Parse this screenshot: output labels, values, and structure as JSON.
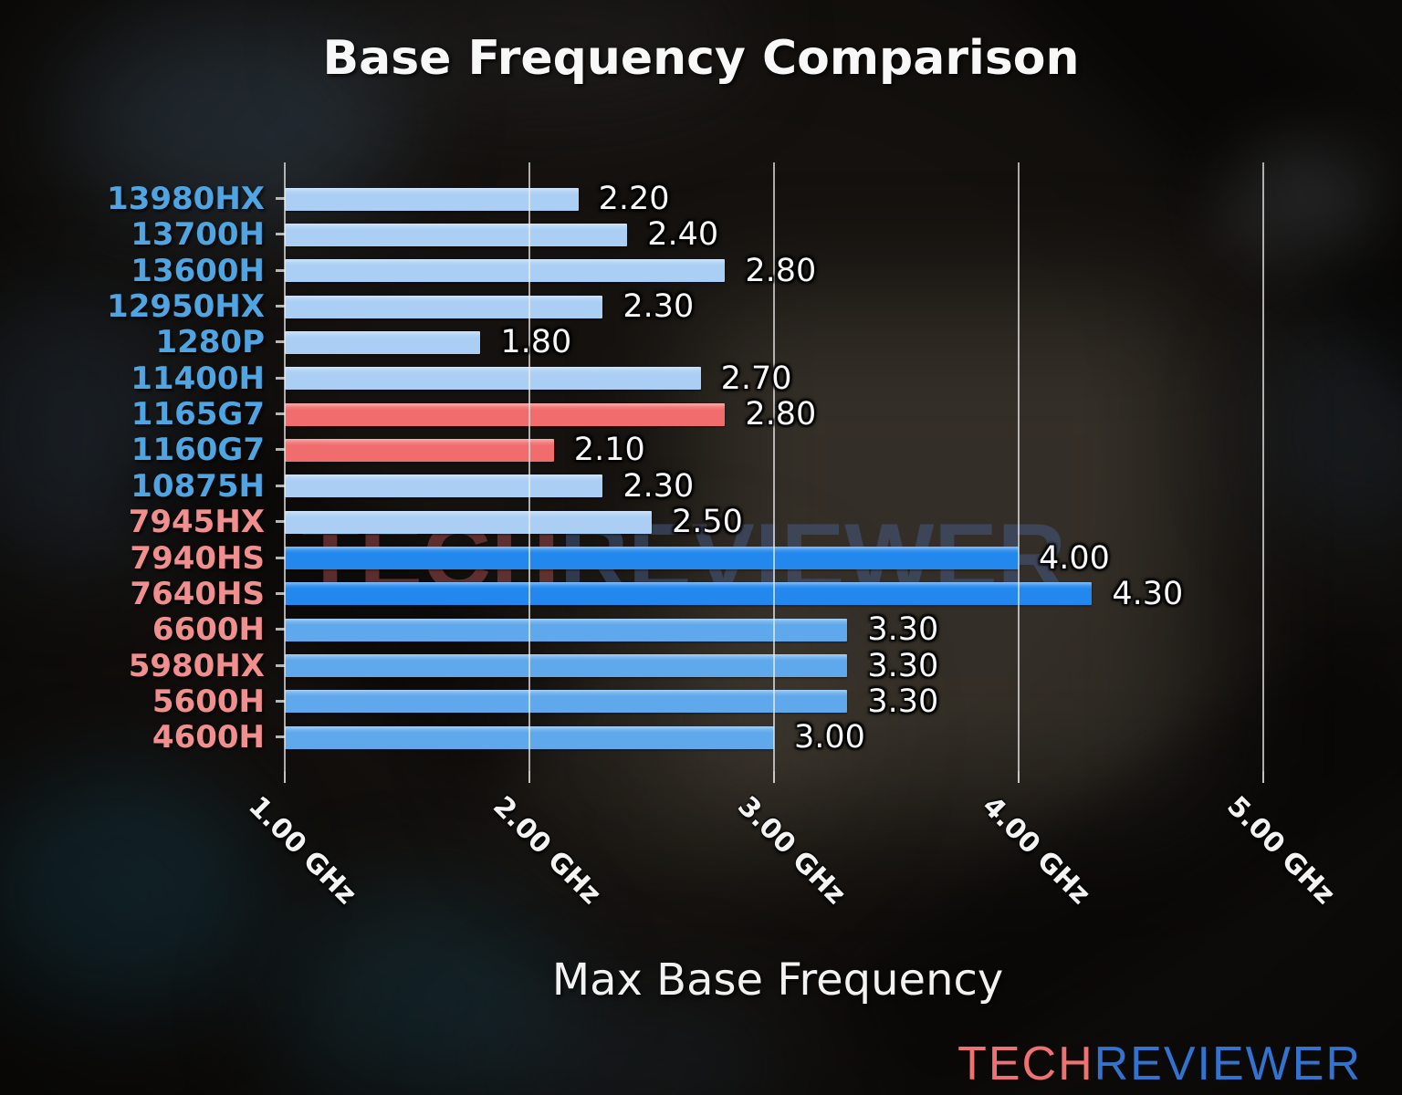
{
  "title": "Base Frequency Comparison",
  "xlabel": "Max Base Frequency",
  "watermark": {
    "tech": "TECH",
    "reviewer": "REVIEWER"
  },
  "logo": {
    "tech": "TECH",
    "reviewer": "REVIEWER"
  },
  "palette": {
    "title_color": "#f8f8f8",
    "value_label_color": "#f7f7f7",
    "grid_color": "#f0f0f0",
    "intel_label_color": "#4fa5e2",
    "amd_label_color": "#f18f8f",
    "bar_pale_blue": "#abcff4",
    "bar_medium_blue": "#5fa8ec",
    "bar_strong_blue": "#2288ee",
    "bar_red": "#f16d6d",
    "logo_tech_color": "#ef7272",
    "logo_reviewer_color": "#3273cf",
    "watermark_tech_color": "#9c4a4a",
    "watermark_reviewer_color": "#465980"
  },
  "chart_data": {
    "type": "bar",
    "orientation": "horizontal",
    "title": "Base Frequency Comparison",
    "xlabel": "Max Base Frequency",
    "x_axis": {
      "min": 1.0,
      "max": 5.4,
      "unit": "GHz",
      "grid": true,
      "tick_values": [
        1,
        2,
        3,
        4,
        5
      ],
      "tick_labels": [
        "1.00 GHz",
        "2.00 GHz",
        "3.00 GHz",
        "4.00 GHz",
        "5.00 GHz"
      ]
    },
    "bars": [
      {
        "label": "13980HX",
        "value": 2.2,
        "value_label": "2.20",
        "group": "intel",
        "bar_style": "pale_blue"
      },
      {
        "label": "13700H",
        "value": 2.4,
        "value_label": "2.40",
        "group": "intel",
        "bar_style": "pale_blue"
      },
      {
        "label": "13600H",
        "value": 2.8,
        "value_label": "2.80",
        "group": "intel",
        "bar_style": "pale_blue"
      },
      {
        "label": "12950HX",
        "value": 2.3,
        "value_label": "2.30",
        "group": "intel",
        "bar_style": "pale_blue"
      },
      {
        "label": "1280P",
        "value": 1.8,
        "value_label": "1.80",
        "group": "intel",
        "bar_style": "pale_blue"
      },
      {
        "label": "11400H",
        "value": 2.7,
        "value_label": "2.70",
        "group": "intel",
        "bar_style": "pale_blue"
      },
      {
        "label": "1165G7",
        "value": 2.8,
        "value_label": "2.80",
        "group": "intel",
        "bar_style": "red"
      },
      {
        "label": "1160G7",
        "value": 2.1,
        "value_label": "2.10",
        "group": "intel",
        "bar_style": "red"
      },
      {
        "label": "10875H",
        "value": 2.3,
        "value_label": "2.30",
        "group": "intel",
        "bar_style": "pale_blue"
      },
      {
        "label": "7945HX",
        "value": 2.5,
        "value_label": "2.50",
        "group": "amd",
        "bar_style": "pale_blue"
      },
      {
        "label": "7940HS",
        "value": 4.0,
        "value_label": "4.00",
        "group": "amd",
        "bar_style": "strong_blue"
      },
      {
        "label": "7640HS",
        "value": 4.3,
        "value_label": "4.30",
        "group": "amd",
        "bar_style": "strong_blue"
      },
      {
        "label": "6600H",
        "value": 3.3,
        "value_label": "3.30",
        "group": "amd",
        "bar_style": "medium_blue"
      },
      {
        "label": "5980HX",
        "value": 3.3,
        "value_label": "3.30",
        "group": "amd",
        "bar_style": "medium_blue"
      },
      {
        "label": "5600H",
        "value": 3.3,
        "value_label": "3.30",
        "group": "amd",
        "bar_style": "medium_blue"
      },
      {
        "label": "4600H",
        "value": 3.0,
        "value_label": "3.00",
        "group": "amd",
        "bar_style": "medium_blue"
      }
    ]
  }
}
